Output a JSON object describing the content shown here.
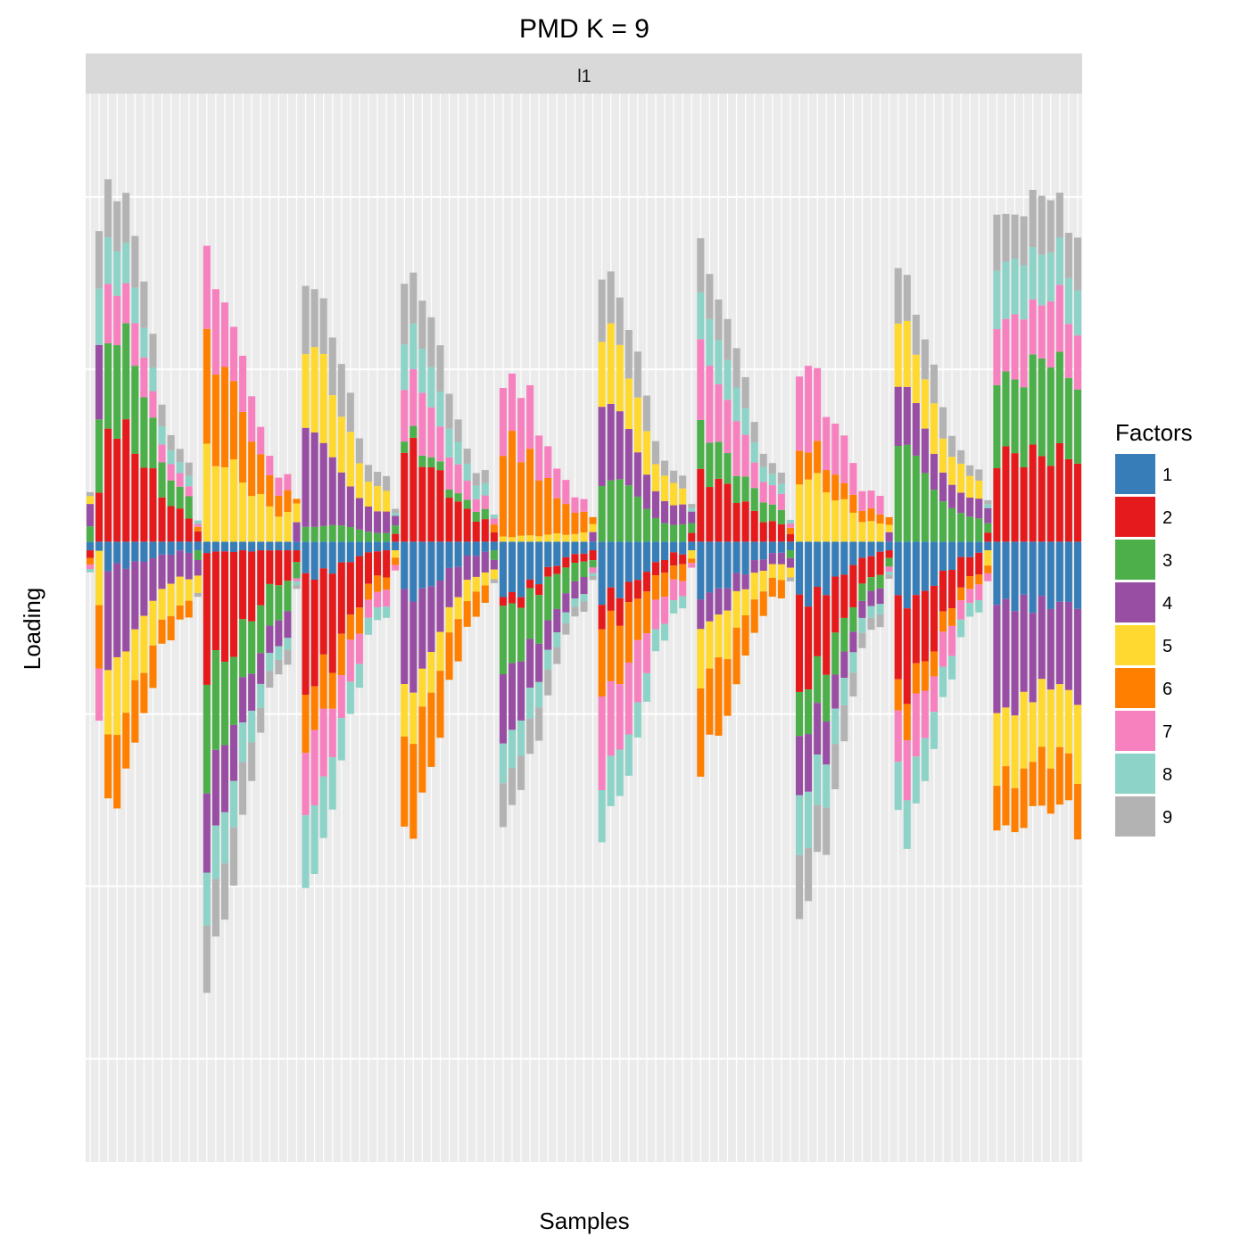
{
  "chart_data": {
    "type": "bar",
    "stacked": "diverging",
    "title": "PMD K = 9",
    "facet_label": "l1",
    "xlabel": "Samples",
    "ylabel": "Loading",
    "x_tick_labels": "none",
    "y_tick_labels": "none",
    "grid": true,
    "legend": {
      "title": "Factors",
      "position": "right"
    },
    "factors": [
      {
        "name": "1",
        "color": "#377EB8"
      },
      {
        "name": "2",
        "color": "#E41A1C"
      },
      {
        "name": "3",
        "color": "#4DAF4A"
      },
      {
        "name": "4",
        "color": "#984EA3"
      },
      {
        "name": "5",
        "color": "#FFD92F"
      },
      {
        "name": "6",
        "color": "#FF7F00"
      },
      {
        "name": "7",
        "color": "#F781BF"
      },
      {
        "name": "8",
        "color": "#8DD3C7"
      },
      {
        "name": "9",
        "color": "#B3B3B3"
      }
    ],
    "group_sizes": [
      1,
      1,
      10,
      1,
      10,
      1,
      10,
      1,
      10,
      1,
      10,
      1,
      10,
      1,
      10,
      1,
      10,
      1,
      10,
      1,
      10
    ],
    "group_anchors": {
      "1": [
        [
          0,
          0.08
        ],
        [
          1,
          0.15
        ],
        [
          10,
          0.15
        ],
        [
          11,
          0.04
        ],
        [
          20,
          0.06
        ],
        [
          21,
          0.04
        ],
        [
          30,
          0.2
        ],
        [
          31,
          0.02
        ],
        [
          40,
          0.32
        ],
        [
          41,
          0.02
        ],
        [
          50,
          0.32
        ],
        [
          51,
          0.02
        ],
        [
          60,
          0.32
        ],
        [
          61,
          0.02
        ],
        [
          70,
          0.31
        ],
        [
          71,
          0.02
        ],
        [
          80,
          0.34
        ],
        [
          81,
          0.02
        ],
        [
          90,
          0.36
        ],
        [
          91,
          0.02
        ],
        [
          100,
          0.36
        ]
      ],
      "2": [
        [
          0,
          0.05
        ],
        [
          1,
          0.25
        ],
        [
          10,
          0.68
        ],
        [
          11,
          0.06
        ],
        [
          20,
          0.68
        ],
        [
          21,
          0.08
        ],
        [
          30,
          0.63
        ],
        [
          31,
          0.05
        ],
        [
          40,
          0.54
        ],
        [
          41,
          0.05
        ],
        [
          50,
          0.06
        ],
        [
          51,
          0.05
        ],
        [
          60,
          0.15
        ],
        [
          61,
          0.05
        ],
        [
          70,
          0.38
        ],
        [
          71,
          0.05
        ],
        [
          80,
          0.5
        ],
        [
          81,
          0.05
        ],
        [
          90,
          0.5
        ],
        [
          91,
          0.05
        ],
        [
          100,
          0.5
        ]
      ],
      "3": [
        [
          0,
          0.1
        ],
        [
          1,
          0.5
        ],
        [
          10,
          0.55
        ],
        [
          11,
          0.05
        ],
        [
          20,
          0.55
        ],
        [
          21,
          0.1
        ],
        [
          30,
          0.1
        ],
        [
          31,
          0.05
        ],
        [
          40,
          0.06
        ],
        [
          41,
          0.05
        ],
        [
          50,
          0.4
        ],
        [
          51,
          0.05
        ],
        [
          60,
          0.35
        ],
        [
          61,
          0.05
        ],
        [
          70,
          0.25
        ],
        [
          71,
          0.05
        ],
        [
          80,
          0.3
        ],
        [
          81,
          0.05
        ],
        [
          90,
          0.5
        ],
        [
          91,
          0.05
        ],
        [
          100,
          0.5
        ]
      ],
      "4": [
        [
          0,
          0.12
        ],
        [
          1,
          0.38
        ],
        [
          10,
          0.5
        ],
        [
          11,
          0.08
        ],
        [
          20,
          0.4
        ],
        [
          21,
          0.1
        ],
        [
          30,
          0.5
        ],
        [
          31,
          0.05
        ],
        [
          40,
          0.48
        ],
        [
          41,
          0.05
        ],
        [
          50,
          0.35
        ],
        [
          51,
          0.05
        ],
        [
          60,
          0.4
        ],
        [
          61,
          0.06
        ],
        [
          70,
          0.15
        ],
        [
          71,
          0.05
        ],
        [
          80,
          0.3
        ],
        [
          81,
          0.05
        ],
        [
          90,
          0.3
        ],
        [
          91,
          0.08
        ],
        [
          100,
          0.55
        ]
      ],
      "5": [
        [
          0,
          0.04
        ],
        [
          1,
          0.35
        ],
        [
          10,
          0.4
        ],
        [
          11,
          0.1
        ],
        [
          20,
          0.5
        ],
        [
          21,
          0.1
        ],
        [
          30,
          0.5
        ],
        [
          31,
          0.05
        ],
        [
          40,
          0.28
        ],
        [
          41,
          0.05
        ],
        [
          50,
          0.03
        ],
        [
          51,
          0.05
        ],
        [
          60,
          0.42
        ],
        [
          61,
          0.05
        ],
        [
          70,
          0.3
        ],
        [
          71,
          0.05
        ],
        [
          80,
          0.38
        ],
        [
          81,
          0.05
        ],
        [
          90,
          0.35
        ],
        [
          91,
          0.08
        ],
        [
          100,
          0.4
        ]
      ],
      "6": [
        [
          0,
          0.04
        ],
        [
          1,
          0.35
        ],
        [
          10,
          0.4
        ],
        [
          11,
          0.03
        ],
        [
          20,
          0.6
        ],
        [
          21,
          0.03
        ],
        [
          30,
          0.3
        ],
        [
          31,
          0.04
        ],
        [
          40,
          0.55
        ],
        [
          41,
          0.04
        ],
        [
          50,
          0.55
        ],
        [
          51,
          0.04
        ],
        [
          60,
          0.4
        ],
        [
          61,
          0.03
        ],
        [
          70,
          0.45
        ],
        [
          71,
          0.04
        ],
        [
          80,
          0.18
        ],
        [
          81,
          0.04
        ],
        [
          90,
          0.2
        ],
        [
          91,
          0.04
        ],
        [
          100,
          0.3
        ]
      ],
      "7": [
        [
          0,
          0.03
        ],
        [
          1,
          0.3
        ],
        [
          10,
          0.3
        ],
        [
          11,
          0.02
        ],
        [
          20,
          0.45
        ],
        [
          21,
          0.02
        ],
        [
          30,
          0.4
        ],
        [
          31,
          0.03
        ],
        [
          40,
          0.35
        ],
        [
          41,
          0.03
        ],
        [
          50,
          0.4
        ],
        [
          51,
          0.03
        ],
        [
          60,
          0.48
        ],
        [
          61,
          0.03
        ],
        [
          70,
          0.42
        ],
        [
          71,
          0.03
        ],
        [
          80,
          0.45
        ],
        [
          81,
          0.03
        ],
        [
          90,
          0.35
        ],
        [
          91,
          0.04
        ],
        [
          100,
          0.35
        ]
      ],
      "8": [
        [
          0,
          0.02
        ],
        [
          1,
          0.35
        ],
        [
          10,
          0.3
        ],
        [
          11,
          0.02
        ],
        [
          20,
          0.3
        ],
        [
          21,
          0.02
        ],
        [
          30,
          0.4
        ],
        [
          31,
          0.02
        ],
        [
          40,
          0.3
        ],
        [
          41,
          0.02
        ],
        [
          50,
          0.2
        ],
        [
          51,
          0.02
        ],
        [
          60,
          0.35
        ],
        [
          61,
          0.02
        ],
        [
          70,
          0.25
        ],
        [
          71,
          0.02
        ],
        [
          80,
          0.35
        ],
        [
          81,
          0.02
        ],
        [
          90,
          0.3
        ],
        [
          91,
          0.02
        ],
        [
          100,
          0.3
        ]
      ],
      "9": [
        [
          0,
          0.02
        ],
        [
          1,
          0.3
        ],
        [
          10,
          0.35
        ],
        [
          11,
          0.02
        ],
        [
          20,
          0.4
        ],
        [
          21,
          0.02
        ],
        [
          30,
          0.4
        ],
        [
          31,
          0.02
        ],
        [
          40,
          0.35
        ],
        [
          41,
          0.02
        ],
        [
          50,
          0.25
        ],
        [
          51,
          0.02
        ],
        [
          60,
          0.35
        ],
        [
          61,
          0.02
        ],
        [
          70,
          0.3
        ],
        [
          71,
          0.02
        ],
        [
          80,
          0.35
        ],
        [
          81,
          0.02
        ],
        [
          90,
          0.3
        ],
        [
          91,
          0.02
        ],
        [
          100,
          0.3
        ]
      ]
    },
    "sign_pattern": [
      [
        1,
        1,
        1,
        1,
        1,
        1,
        1,
        1,
        1
      ],
      [
        -1,
        -1,
        1,
        1,
        1,
        -1,
        1,
        1,
        -1
      ]
    ],
    "value_note_free": true,
    "ylim": [
      -3.6,
      2.6
    ]
  }
}
